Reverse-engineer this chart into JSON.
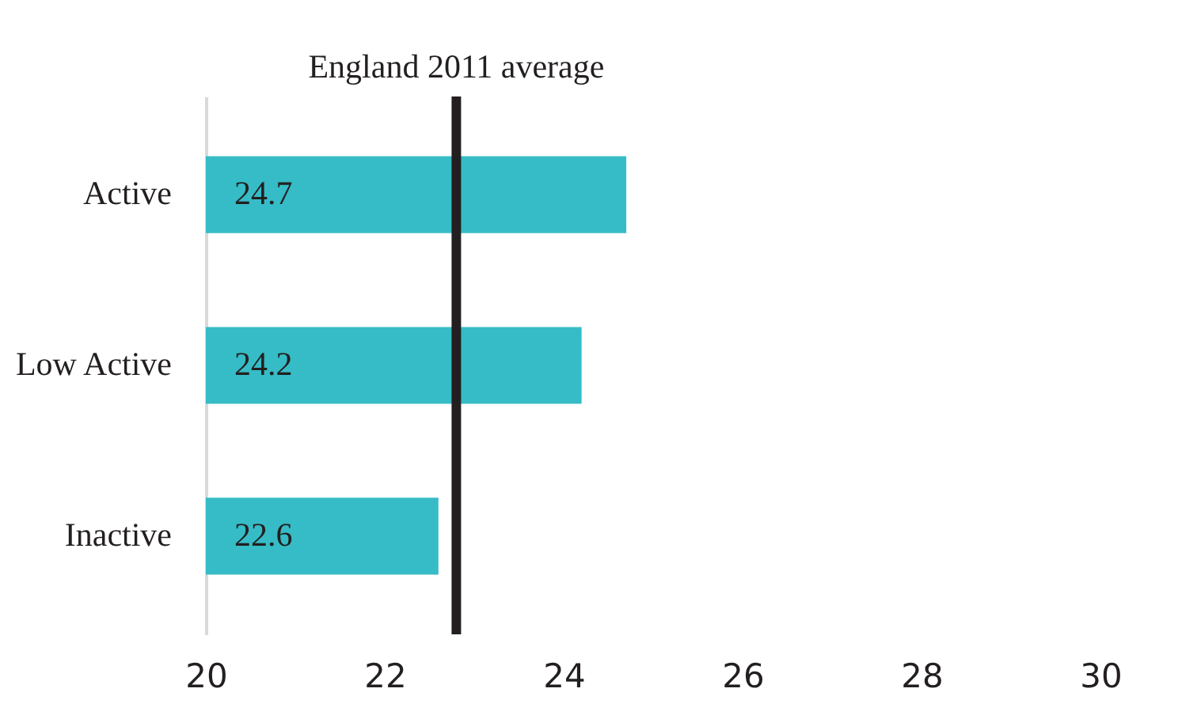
{
  "chart_data": {
    "type": "bar",
    "orientation": "horizontal",
    "categories": [
      "Active",
      "Low Active",
      "Inactive"
    ],
    "values": [
      24.7,
      24.2,
      22.6
    ],
    "color": "#36bcc6",
    "data_labels": true,
    "xlim": [
      20,
      30
    ],
    "xticks": [
      20,
      22,
      24,
      26,
      28,
      30
    ],
    "grid": false,
    "ref_lines": [
      {
        "axis": "x",
        "value": 22.8,
        "label": "England 2011 average",
        "color": "#231f20"
      }
    ]
  }
}
